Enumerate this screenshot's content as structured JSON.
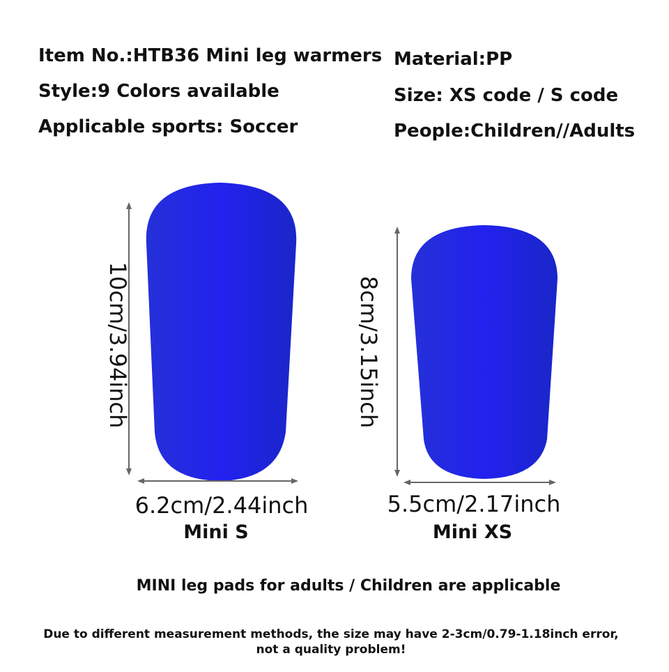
{
  "specs": {
    "left": [
      "Item No.:HTB36 Mini leg warmers",
      "Style:9 Colors available",
      "Applicable sports: Soccer"
    ],
    "right": [
      "Material:PP",
      "Size: XS code / S code",
      "People:Children//Adults"
    ]
  },
  "products": [
    {
      "height": "10cm/3.94inch",
      "width": "6.2cm/2.44inch",
      "name": "Mini S"
    },
    {
      "height": "8cm/3.15inch",
      "width": "5.5cm/2.17inch",
      "name": "Mini XS"
    }
  ],
  "note": "MINI leg pads for adults / Children are applicable",
  "disclaimer": [
    "Due to different measurement methods, the size may have 2-3cm/0.79-1.18inch error,",
    "not a quality problem!"
  ]
}
